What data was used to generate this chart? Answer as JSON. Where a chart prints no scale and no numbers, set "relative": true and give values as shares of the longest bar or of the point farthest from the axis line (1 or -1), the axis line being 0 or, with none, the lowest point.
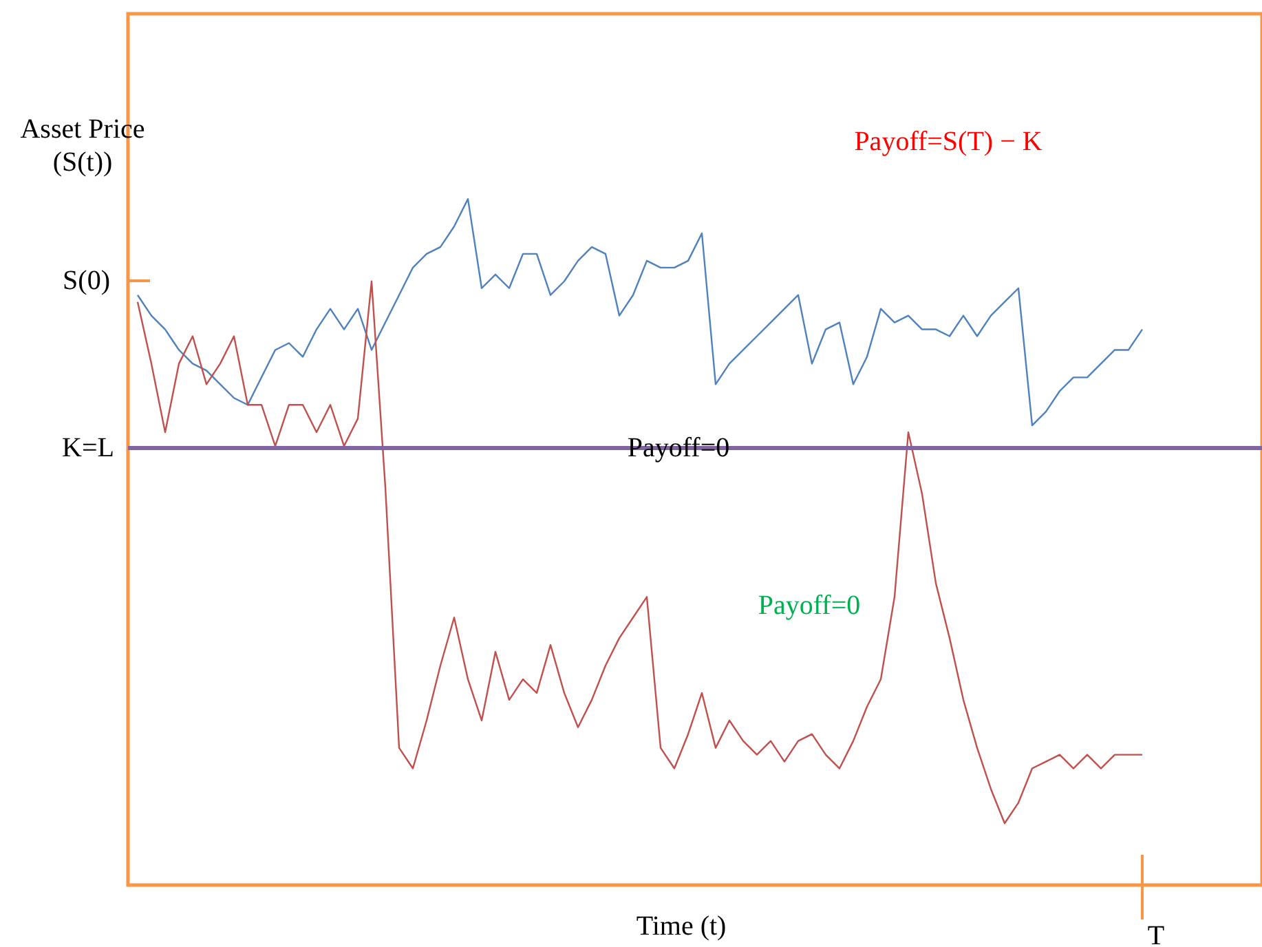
{
  "chart_data": {
    "type": "line",
    "relative": true,
    "ylabel": "Asset Price\n(S(t))",
    "xlabel": "Time (t)",
    "categories": [
      null,
      null,
      null,
      null,
      null,
      null,
      null,
      null,
      null,
      null,
      null,
      null,
      null,
      null,
      null,
      null,
      null,
      null,
      null,
      null,
      null,
      null,
      null,
      null,
      null,
      null,
      null,
      null,
      null,
      null,
      null,
      null,
      null,
      null,
      null,
      null,
      null,
      null,
      null,
      null,
      null,
      null,
      null,
      null,
      null,
      null,
      null,
      null,
      null,
      null,
      null,
      null,
      null,
      null,
      null,
      null,
      null,
      null,
      null,
      null,
      null,
      null,
      null,
      null,
      null,
      null,
      null,
      null,
      null,
      null,
      null,
      null,
      null,
      null
    ],
    "series": [
      {
        "color": "#4f81bd",
        "values": [
          0.86,
          0.83,
          0.81,
          0.78,
          0.76,
          0.75,
          0.73,
          0.71,
          0.7,
          0.74,
          0.78,
          0.79,
          0.77,
          0.81,
          0.84,
          0.81,
          0.84,
          0.78,
          0.82,
          0.86,
          0.9,
          0.92,
          0.93,
          0.96,
          1.0,
          0.87,
          0.89,
          0.87,
          0.92,
          0.92,
          0.86,
          0.88,
          0.91,
          0.93,
          0.92,
          0.83,
          0.86,
          0.91,
          0.9,
          0.9,
          0.91,
          0.95,
          0.73,
          0.76,
          0.78,
          0.8,
          0.82,
          0.84,
          0.86,
          0.76,
          0.81,
          0.82,
          0.73,
          0.77,
          0.84,
          0.82,
          0.83,
          0.81,
          0.81,
          0.8,
          0.83,
          0.8,
          0.83,
          0.85,
          0.87,
          0.67,
          0.69,
          0.72,
          0.74,
          0.74,
          0.76,
          0.78,
          0.78,
          0.81
        ]
      },
      {
        "color": "#c0504d",
        "values": [
          0.85,
          0.76,
          0.66,
          0.76,
          0.8,
          0.73,
          0.76,
          0.8,
          0.7,
          0.7,
          0.64,
          0.7,
          0.7,
          0.66,
          0.7,
          0.64,
          0.68,
          0.88,
          0.58,
          0.2,
          0.17,
          0.24,
          0.32,
          0.39,
          0.3,
          0.24,
          0.34,
          0.27,
          0.3,
          0.28,
          0.35,
          0.28,
          0.23,
          0.27,
          0.32,
          0.36,
          0.39,
          0.42,
          0.2,
          0.17,
          0.22,
          0.28,
          0.2,
          0.24,
          0.21,
          0.19,
          0.21,
          0.18,
          0.21,
          0.22,
          0.19,
          0.17,
          0.21,
          0.26,
          0.3,
          0.42,
          0.66,
          0.57,
          0.44,
          0.36,
          0.27,
          0.2,
          0.14,
          0.09,
          0.12,
          0.17,
          0.18,
          0.19,
          0.17,
          0.19,
          0.17,
          0.19,
          0.19,
          0.19
        ]
      }
    ],
    "ref_lines": [
      {
        "axis": "y",
        "value": 0.637,
        "label": "K=L",
        "color": "#8064a2"
      }
    ],
    "annotations": [
      "Payoff=S(T) − K",
      {
        "text": "Payoff=0",
        "y": 0.637
      },
      "Payoff=0",
      "S(0)",
      "T"
    ],
    "line_style": "solid",
    "marker": "none"
  }
}
